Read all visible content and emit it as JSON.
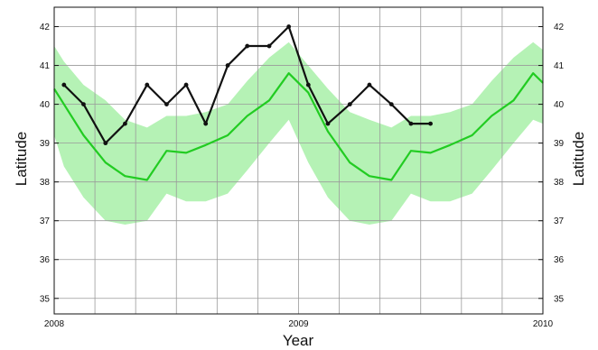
{
  "chart_data": {
    "type": "line",
    "title": "",
    "xlabel": "Year",
    "ylabel": "Latitude",
    "ylabel_right": "Latitude",
    "xlim": [
      2008,
      2010
    ],
    "ylim": [
      34.6,
      42.5
    ],
    "x_ticks": [
      {
        "value": 2008,
        "label": "2008"
      },
      {
        "value": 2009,
        "label": "2009"
      },
      {
        "value": 2010,
        "label": "2010"
      }
    ],
    "y_ticks": [
      35,
      36,
      37,
      38,
      39,
      40,
      41,
      42
    ],
    "grid": true,
    "band": {
      "color": "#b5f2b5",
      "x": [
        2008.0,
        2008.04,
        2008.12,
        2008.21,
        2008.29,
        2008.38,
        2008.46,
        2008.54,
        2008.62,
        2008.71,
        2008.79,
        2008.88,
        2008.96,
        2009.04,
        2009.12,
        2009.21,
        2009.29,
        2009.38,
        2009.46,
        2009.54,
        2009.62,
        2009.71,
        2009.79,
        2009.88,
        2009.96,
        2010.0
      ],
      "upper": [
        41.5,
        41.1,
        40.5,
        40.1,
        39.6,
        39.4,
        39.7,
        39.7,
        39.8,
        40.0,
        40.6,
        41.2,
        41.6,
        41.0,
        40.4,
        39.8,
        39.6,
        39.4,
        39.7,
        39.7,
        39.8,
        40.0,
        40.6,
        41.2,
        41.6,
        41.4
      ],
      "lower": [
        39.2,
        38.4,
        37.6,
        37.0,
        36.9,
        37.0,
        37.7,
        37.5,
        37.5,
        37.7,
        38.3,
        39.0,
        39.6,
        38.5,
        37.6,
        37.0,
        36.9,
        37.0,
        37.7,
        37.5,
        37.5,
        37.7,
        38.3,
        39.0,
        39.6,
        39.5
      ]
    },
    "series": [
      {
        "color": "#22cc22",
        "x": [
          2008.0,
          2008.04,
          2008.12,
          2008.21,
          2008.29,
          2008.38,
          2008.46,
          2008.54,
          2008.62,
          2008.71,
          2008.79,
          2008.88,
          2008.96,
          2009.04,
          2009.12,
          2009.21,
          2009.29,
          2009.38,
          2009.46,
          2009.54,
          2009.62,
          2009.71,
          2009.79,
          2009.88,
          2009.96,
          2010.0
        ],
        "y": [
          40.4,
          40.0,
          39.2,
          38.5,
          38.15,
          38.05,
          38.8,
          38.75,
          38.95,
          39.2,
          39.7,
          40.1,
          40.8,
          40.3,
          39.3,
          38.5,
          38.15,
          38.05,
          38.8,
          38.75,
          38.95,
          39.2,
          39.7,
          40.1,
          40.8,
          40.55
        ],
        "markers": false
      },
      {
        "color": "#111111",
        "x": [
          2008.04,
          2008.12,
          2008.21,
          2008.29,
          2008.38,
          2008.46,
          2008.54,
          2008.62,
          2008.71,
          2008.79,
          2008.88,
          2008.96,
          2009.04,
          2009.12,
          2009.21,
          2009.29,
          2009.38,
          2009.46,
          2009.54
        ],
        "y": [
          40.5,
          40.0,
          39.0,
          39.5,
          40.5,
          40.0,
          40.5,
          39.5,
          41.0,
          41.5,
          41.5,
          42.0,
          40.5,
          39.5,
          40.0,
          40.5,
          40.0,
          39.5,
          39.5
        ],
        "markers": true
      }
    ]
  }
}
